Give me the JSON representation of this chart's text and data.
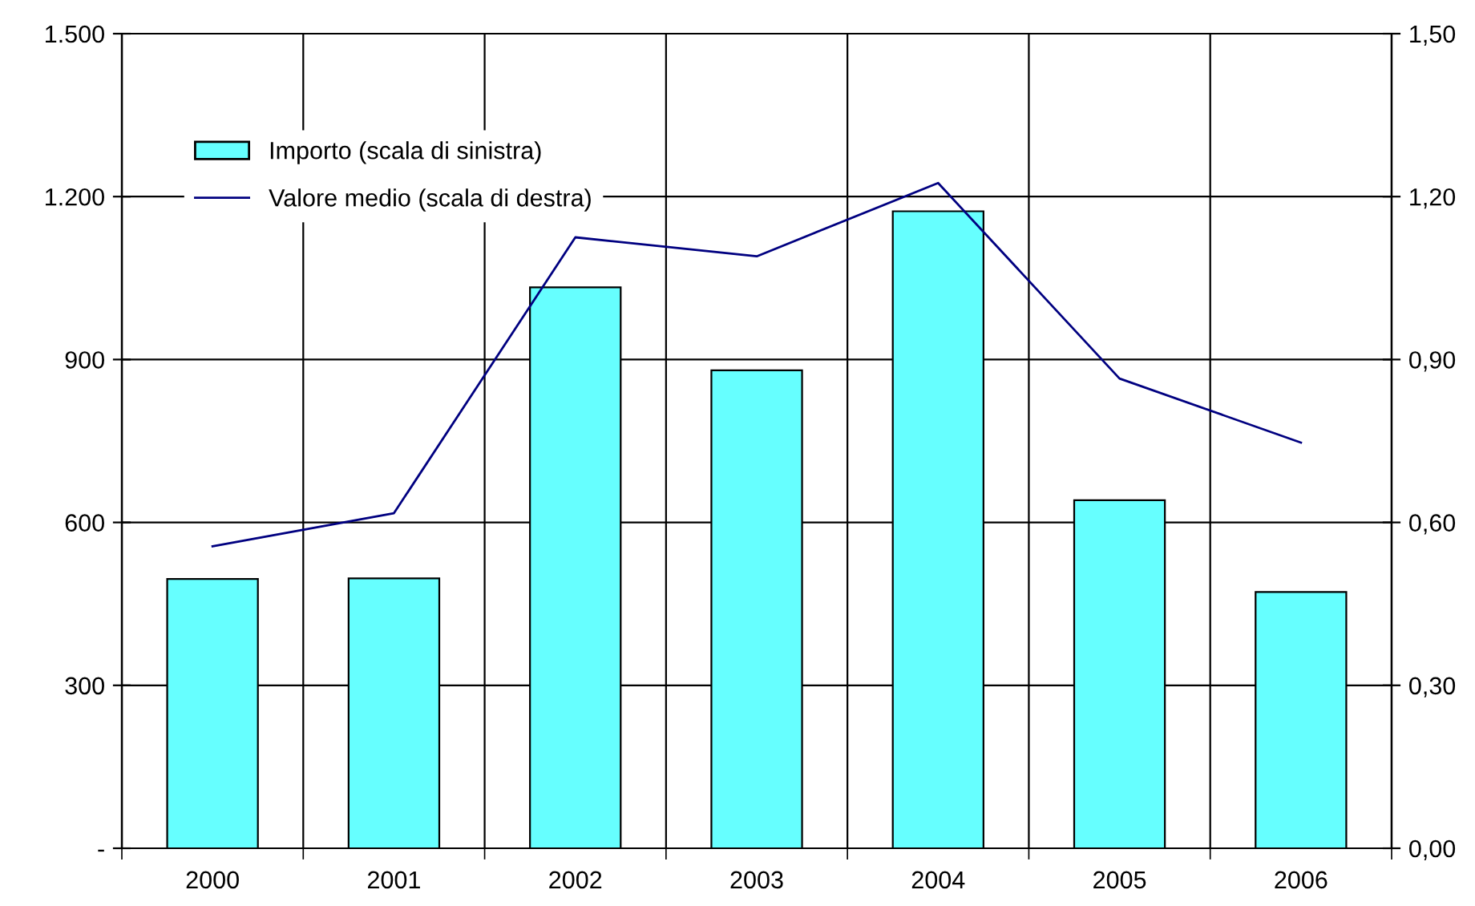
{
  "chart_data": {
    "type": "bar",
    "categories": [
      "2000",
      "2001",
      "2002",
      "2003",
      "2004",
      "2005",
      "2006"
    ],
    "series": [
      {
        "name": "Importo (scala di sinistra)",
        "color": "#66ffff",
        "values": [
          496,
          497,
          1033,
          880,
          1173,
          641,
          472
        ]
      },
      {
        "name": "Valore medio (scala di destra)",
        "type": "line",
        "axis": "y2",
        "color": "#000080",
        "values": [
          0.556,
          0.617,
          1.125,
          1.09,
          1.225,
          0.865,
          0.747
        ]
      }
    ],
    "ylim": [
      0,
      1500
    ],
    "yticks": [
      {
        "value": 0,
        "label": "-"
      },
      {
        "value": 300,
        "label": "300"
      },
      {
        "value": 600,
        "label": "600"
      },
      {
        "value": 900,
        "label": "900"
      },
      {
        "value": 1200,
        "label": "1.200"
      },
      {
        "value": 1500,
        "label": "1.500"
      }
    ],
    "y2lim": [
      0,
      1.5
    ],
    "y2ticks": [
      {
        "value": 0,
        "label": "0,00"
      },
      {
        "value": 0.3,
        "label": "0,30"
      },
      {
        "value": 0.6,
        "label": "0,60"
      },
      {
        "value": 0.9,
        "label": "0,90"
      },
      {
        "value": 1.2,
        "label": "1,20"
      },
      {
        "value": 1.5,
        "label": "1,50"
      }
    ],
    "grid": true,
    "legend": "top left",
    "marker": "none",
    "line_style": "solid"
  }
}
